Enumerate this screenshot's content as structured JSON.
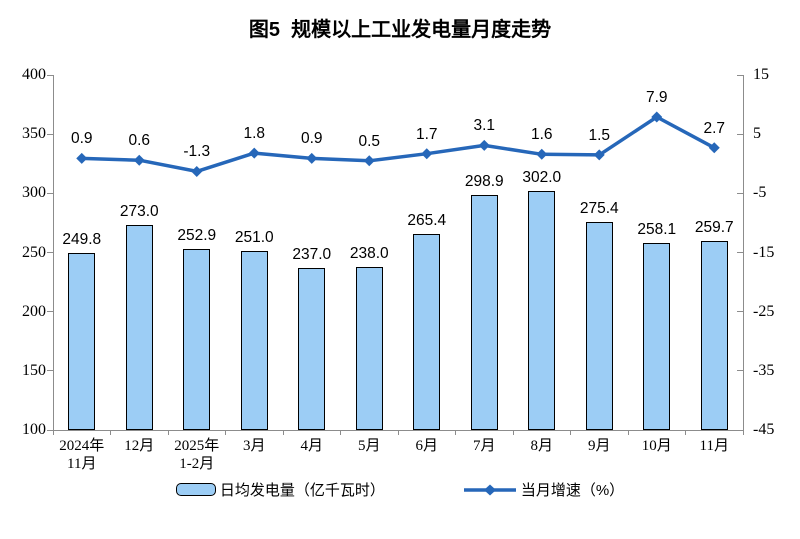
{
  "chart_data": {
    "type": "combo",
    "title": "图5  规模以上工业发电量月度走势",
    "categories": [
      "2024年\n11月",
      "12月",
      "2025年\n1-2月",
      "3月",
      "4月",
      "5月",
      "6月",
      "7月",
      "8月",
      "9月",
      "10月",
      "11月"
    ],
    "series": [
      {
        "name": "日均发电量（亿千瓦时）",
        "type": "bar",
        "axis": "left",
        "values": [
          249.8,
          273.0,
          252.9,
          251.0,
          237.0,
          238.0,
          265.4,
          298.9,
          302.0,
          275.4,
          258.1,
          259.7
        ]
      },
      {
        "name": "当月增速（%）",
        "type": "line",
        "axis": "right",
        "values": [
          0.9,
          0.6,
          -1.3,
          1.8,
          0.9,
          0.5,
          1.7,
          3.1,
          1.6,
          1.5,
          7.9,
          2.7
        ]
      }
    ],
    "left_axis": {
      "min": 100,
      "max": 400,
      "ticks": [
        400,
        350,
        300,
        250,
        200,
        150,
        100
      ]
    },
    "right_axis": {
      "min": -45,
      "max": 15,
      "ticks": [
        15,
        5,
        -5,
        -15,
        -25,
        -35,
        -45
      ]
    },
    "legend_position": "bottom",
    "grid": false,
    "data_labels": true
  },
  "colors": {
    "background": "#FFFFFF",
    "text": "#000000",
    "axis": "#8C8C8C",
    "bar_fill": "#9CCDF5",
    "bar_border": "#000000",
    "line": "#2667B9"
  }
}
